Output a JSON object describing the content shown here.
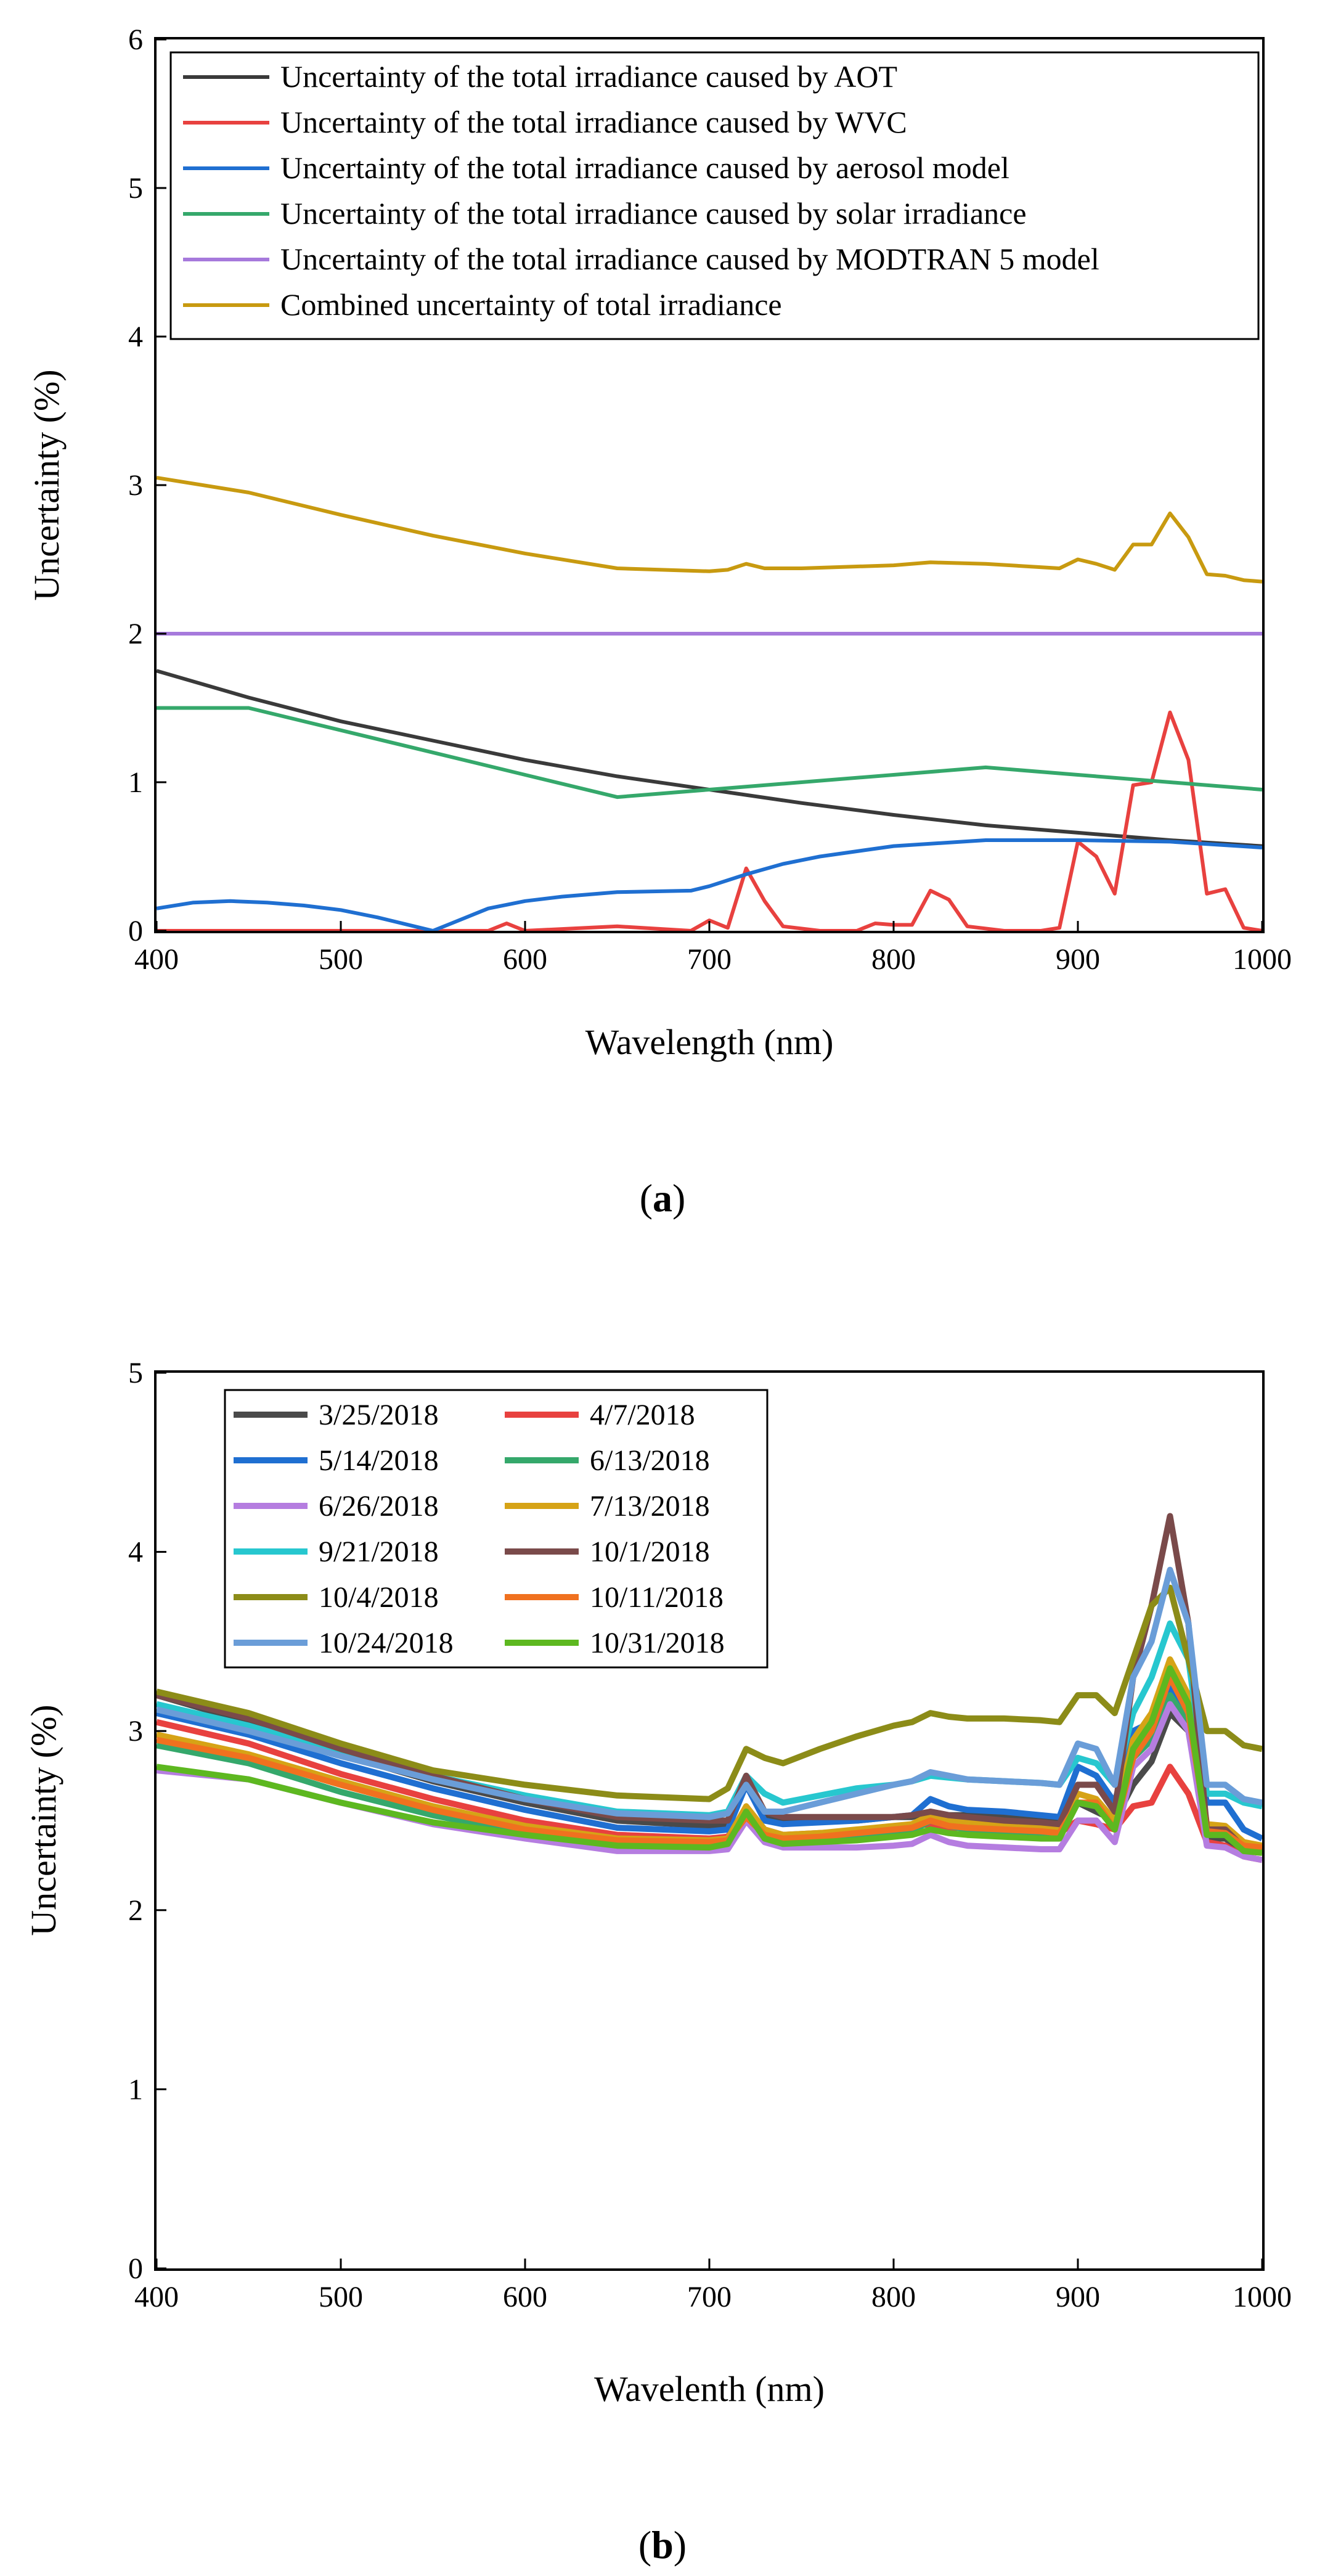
{
  "panels": {
    "a": {
      "label_open": "(",
      "label_letter": "a",
      "label_close": ")"
    },
    "b": {
      "label_open": "(",
      "label_letter": "b",
      "label_close": ")"
    }
  },
  "chart_data": [
    {
      "type": "line",
      "panel": "a",
      "xlabel": "Wavelength (nm)",
      "ylabel": "Uncertainty (%)",
      "xlim": [
        400,
        1000
      ],
      "ylim": [
        0,
        6
      ],
      "xticks": [
        400,
        500,
        600,
        700,
        800,
        900,
        1000
      ],
      "yticks": [
        0,
        1,
        2,
        3,
        4,
        5,
        6
      ],
      "legend_position": "top-left",
      "series": [
        {
          "name": "Uncertainty of the total irradiance caused by AOT",
          "color": "#3a3a3a",
          "x": [
            400,
            450,
            500,
            550,
            600,
            650,
            700,
            750,
            800,
            850,
            900,
            950,
            1000
          ],
          "y": [
            1.75,
            1.57,
            1.41,
            1.28,
            1.15,
            1.04,
            0.95,
            0.86,
            0.78,
            0.71,
            0.66,
            0.61,
            0.57
          ]
        },
        {
          "name": "Uncertainty of the total irradiance caused by WVC",
          "color": "#e8413f",
          "x": [
            400,
            560,
            580,
            590,
            600,
            650,
            690,
            700,
            710,
            720,
            730,
            740,
            760,
            780,
            790,
            800,
            810,
            820,
            830,
            840,
            860,
            880,
            890,
            900,
            910,
            920,
            930,
            940,
            950,
            960,
            970,
            980,
            990,
            1000
          ],
          "y": [
            0,
            0,
            0,
            0.05,
            0,
            0.03,
            0,
            0.07,
            0.02,
            0.42,
            0.2,
            0.03,
            0,
            0,
            0.05,
            0.04,
            0.04,
            0.27,
            0.21,
            0.03,
            0,
            0,
            0.02,
            0.6,
            0.5,
            0.25,
            0.98,
            1.0,
            1.47,
            1.15,
            0.25,
            0.28,
            0.02,
            0
          ]
        },
        {
          "name": "Uncertainty of the total irradiance caused by aerosol model",
          "color": "#1f6fd1",
          "x": [
            400,
            420,
            440,
            460,
            480,
            500,
            520,
            540,
            550,
            560,
            580,
            600,
            620,
            650,
            690,
            700,
            720,
            740,
            760,
            800,
            850,
            900,
            950,
            1000
          ],
          "y": [
            0.15,
            0.19,
            0.2,
            0.19,
            0.17,
            0.14,
            0.09,
            0.03,
            0,
            0.05,
            0.15,
            0.2,
            0.23,
            0.26,
            0.27,
            0.3,
            0.38,
            0.45,
            0.5,
            0.57,
            0.61,
            0.61,
            0.6,
            0.56
          ]
        },
        {
          "name": "Uncertainty of the total irradiance caused by solar irradiance",
          "color": "#35a86b",
          "x": [
            400,
            450,
            500,
            550,
            600,
            650,
            700,
            750,
            800,
            850,
            900,
            950,
            1000
          ],
          "y": [
            1.5,
            1.5,
            1.35,
            1.2,
            1.05,
            0.9,
            0.95,
            1.0,
            1.05,
            1.1,
            1.05,
            1.0,
            0.95
          ]
        },
        {
          "name": "Uncertainty of the total irradiance caused by MODTRAN 5 model",
          "color": "#a679dc",
          "x": [
            400,
            1000
          ],
          "y": [
            2,
            2
          ]
        },
        {
          "name": "Combined uncertainty of total irradiance",
          "color": "#c89a10",
          "x": [
            400,
            450,
            500,
            550,
            600,
            650,
            700,
            710,
            720,
            730,
            750,
            800,
            820,
            850,
            890,
            900,
            910,
            920,
            930,
            940,
            950,
            960,
            970,
            980,
            990,
            1000
          ],
          "y": [
            3.05,
            2.95,
            2.8,
            2.66,
            2.54,
            2.44,
            2.42,
            2.43,
            2.47,
            2.44,
            2.44,
            2.46,
            2.48,
            2.47,
            2.44,
            2.5,
            2.47,
            2.43,
            2.6,
            2.6,
            2.81,
            2.65,
            2.4,
            2.39,
            2.36,
            2.35
          ]
        }
      ]
    },
    {
      "type": "line",
      "panel": "b",
      "xlabel": "Wavelenth (nm)",
      "ylabel": "Uncertainty (%)",
      "xlim": [
        400,
        1000
      ],
      "ylim": [
        0,
        5
      ],
      "xticks": [
        400,
        500,
        600,
        700,
        800,
        900,
        1000
      ],
      "yticks": [
        0,
        1,
        2,
        3,
        4,
        5
      ],
      "legend_position": "top-left",
      "x": [
        400,
        450,
        500,
        550,
        600,
        650,
        700,
        710,
        720,
        730,
        740,
        760,
        780,
        800,
        810,
        820,
        830,
        840,
        860,
        880,
        890,
        900,
        910,
        920,
        930,
        940,
        950,
        960,
        970,
        980,
        990,
        1000
      ],
      "series": [
        {
          "name": "3/25/2018",
          "color": "#4a4a4a",
          "y": [
            3.2,
            3.05,
            2.87,
            2.72,
            2.6,
            2.5,
            2.47,
            2.47,
            2.73,
            2.52,
            2.5,
            2.5,
            2.5,
            2.52,
            2.52,
            2.55,
            2.53,
            2.53,
            2.52,
            2.5,
            2.5,
            2.6,
            2.55,
            2.5,
            2.7,
            2.83,
            3.1,
            3.0,
            2.4,
            2.4,
            2.33,
            2.32
          ]
        },
        {
          "name": "4/7/2018",
          "color": "#e8413f",
          "y": [
            3.05,
            2.93,
            2.76,
            2.62,
            2.5,
            2.42,
            2.4,
            2.41,
            2.55,
            2.45,
            2.42,
            2.43,
            2.44,
            2.46,
            2.47,
            2.48,
            2.46,
            2.46,
            2.45,
            2.44,
            2.43,
            2.5,
            2.48,
            2.45,
            2.58,
            2.6,
            2.8,
            2.65,
            2.38,
            2.36,
            2.3,
            2.28
          ]
        },
        {
          "name": "5/14/2018",
          "color": "#1f6fd1",
          "y": [
            3.1,
            2.98,
            2.82,
            2.68,
            2.56,
            2.46,
            2.44,
            2.45,
            2.7,
            2.5,
            2.48,
            2.49,
            2.5,
            2.52,
            2.53,
            2.62,
            2.58,
            2.56,
            2.55,
            2.53,
            2.52,
            2.8,
            2.75,
            2.6,
            3.0,
            3.05,
            3.25,
            3.1,
            2.6,
            2.6,
            2.45,
            2.4
          ]
        },
        {
          "name": "6/13/2018",
          "color": "#35a86b",
          "y": [
            2.92,
            2.82,
            2.66,
            2.53,
            2.43,
            2.36,
            2.35,
            2.36,
            2.55,
            2.42,
            2.38,
            2.39,
            2.4,
            2.43,
            2.44,
            2.5,
            2.47,
            2.45,
            2.44,
            2.42,
            2.41,
            2.6,
            2.58,
            2.45,
            2.85,
            2.95,
            3.2,
            3.05,
            2.42,
            2.42,
            2.34,
            2.33
          ]
        },
        {
          "name": "6/26/2018",
          "color": "#b57de0",
          "y": [
            2.78,
            2.73,
            2.6,
            2.48,
            2.4,
            2.33,
            2.33,
            2.34,
            2.5,
            2.38,
            2.35,
            2.35,
            2.35,
            2.36,
            2.37,
            2.42,
            2.38,
            2.36,
            2.35,
            2.34,
            2.34,
            2.5,
            2.5,
            2.38,
            2.8,
            2.9,
            3.15,
            3.0,
            2.36,
            2.35,
            2.3,
            2.28
          ]
        },
        {
          "name": "7/13/2018",
          "color": "#d6a316",
          "y": [
            2.98,
            2.87,
            2.72,
            2.58,
            2.47,
            2.4,
            2.39,
            2.4,
            2.58,
            2.45,
            2.42,
            2.43,
            2.45,
            2.47,
            2.48,
            2.53,
            2.5,
            2.49,
            2.48,
            2.46,
            2.45,
            2.65,
            2.62,
            2.5,
            2.95,
            3.1,
            3.4,
            3.2,
            2.48,
            2.47,
            2.38,
            2.36
          ]
        },
        {
          "name": "9/21/2018",
          "color": "#27c7cf",
          "y": [
            3.15,
            3.03,
            2.88,
            2.75,
            2.64,
            2.55,
            2.53,
            2.55,
            2.75,
            2.65,
            2.6,
            2.64,
            2.68,
            2.7,
            2.72,
            2.75,
            2.74,
            2.73,
            2.72,
            2.71,
            2.7,
            2.85,
            2.82,
            2.7,
            3.1,
            3.3,
            3.6,
            3.4,
            2.65,
            2.65,
            2.6,
            2.58
          ]
        },
        {
          "name": "10/1/2018",
          "color": "#7a4a4a",
          "y": [
            3.2,
            3.07,
            2.9,
            2.75,
            2.62,
            2.52,
            2.5,
            2.5,
            2.75,
            2.55,
            2.52,
            2.52,
            2.52,
            2.52,
            2.53,
            2.55,
            2.53,
            2.52,
            2.5,
            2.49,
            2.48,
            2.7,
            2.7,
            2.55,
            3.3,
            3.7,
            4.2,
            3.6,
            2.45,
            2.45,
            2.35,
            2.34
          ]
        },
        {
          "name": "10/4/2018",
          "color": "#8c8c18",
          "y": [
            3.22,
            3.1,
            2.93,
            2.78,
            2.7,
            2.64,
            2.62,
            2.68,
            2.9,
            2.85,
            2.82,
            2.9,
            2.97,
            3.03,
            3.05,
            3.1,
            3.08,
            3.07,
            3.07,
            3.06,
            3.05,
            3.2,
            3.2,
            3.1,
            3.4,
            3.7,
            3.8,
            3.4,
            3.0,
            3.0,
            2.92,
            2.9
          ]
        },
        {
          "name": "10/11/2018",
          "color": "#f0711f",
          "y": [
            2.95,
            2.85,
            2.7,
            2.56,
            2.45,
            2.39,
            2.38,
            2.39,
            2.52,
            2.42,
            2.4,
            2.41,
            2.43,
            2.45,
            2.46,
            2.5,
            2.47,
            2.46,
            2.45,
            2.44,
            2.43,
            2.6,
            2.6,
            2.45,
            2.85,
            3.0,
            3.3,
            3.1,
            2.44,
            2.43,
            2.36,
            2.35
          ]
        },
        {
          "name": "10/24/2018",
          "color": "#6a9dd8",
          "y": [
            3.12,
            3.0,
            2.86,
            2.73,
            2.62,
            2.54,
            2.52,
            2.54,
            2.7,
            2.55,
            2.55,
            2.6,
            2.65,
            2.7,
            2.72,
            2.77,
            2.75,
            2.73,
            2.72,
            2.71,
            2.7,
            2.93,
            2.9,
            2.7,
            3.3,
            3.5,
            3.9,
            3.6,
            2.7,
            2.7,
            2.62,
            2.6
          ]
        },
        {
          "name": "10/31/2018",
          "color": "#5db820",
          "y": [
            2.8,
            2.73,
            2.6,
            2.49,
            2.42,
            2.36,
            2.35,
            2.37,
            2.55,
            2.4,
            2.37,
            2.38,
            2.39,
            2.41,
            2.42,
            2.45,
            2.43,
            2.42,
            2.41,
            2.4,
            2.4,
            2.6,
            2.58,
            2.45,
            2.9,
            3.05,
            3.35,
            3.15,
            2.42,
            2.42,
            2.33,
            2.32
          ]
        }
      ]
    }
  ]
}
